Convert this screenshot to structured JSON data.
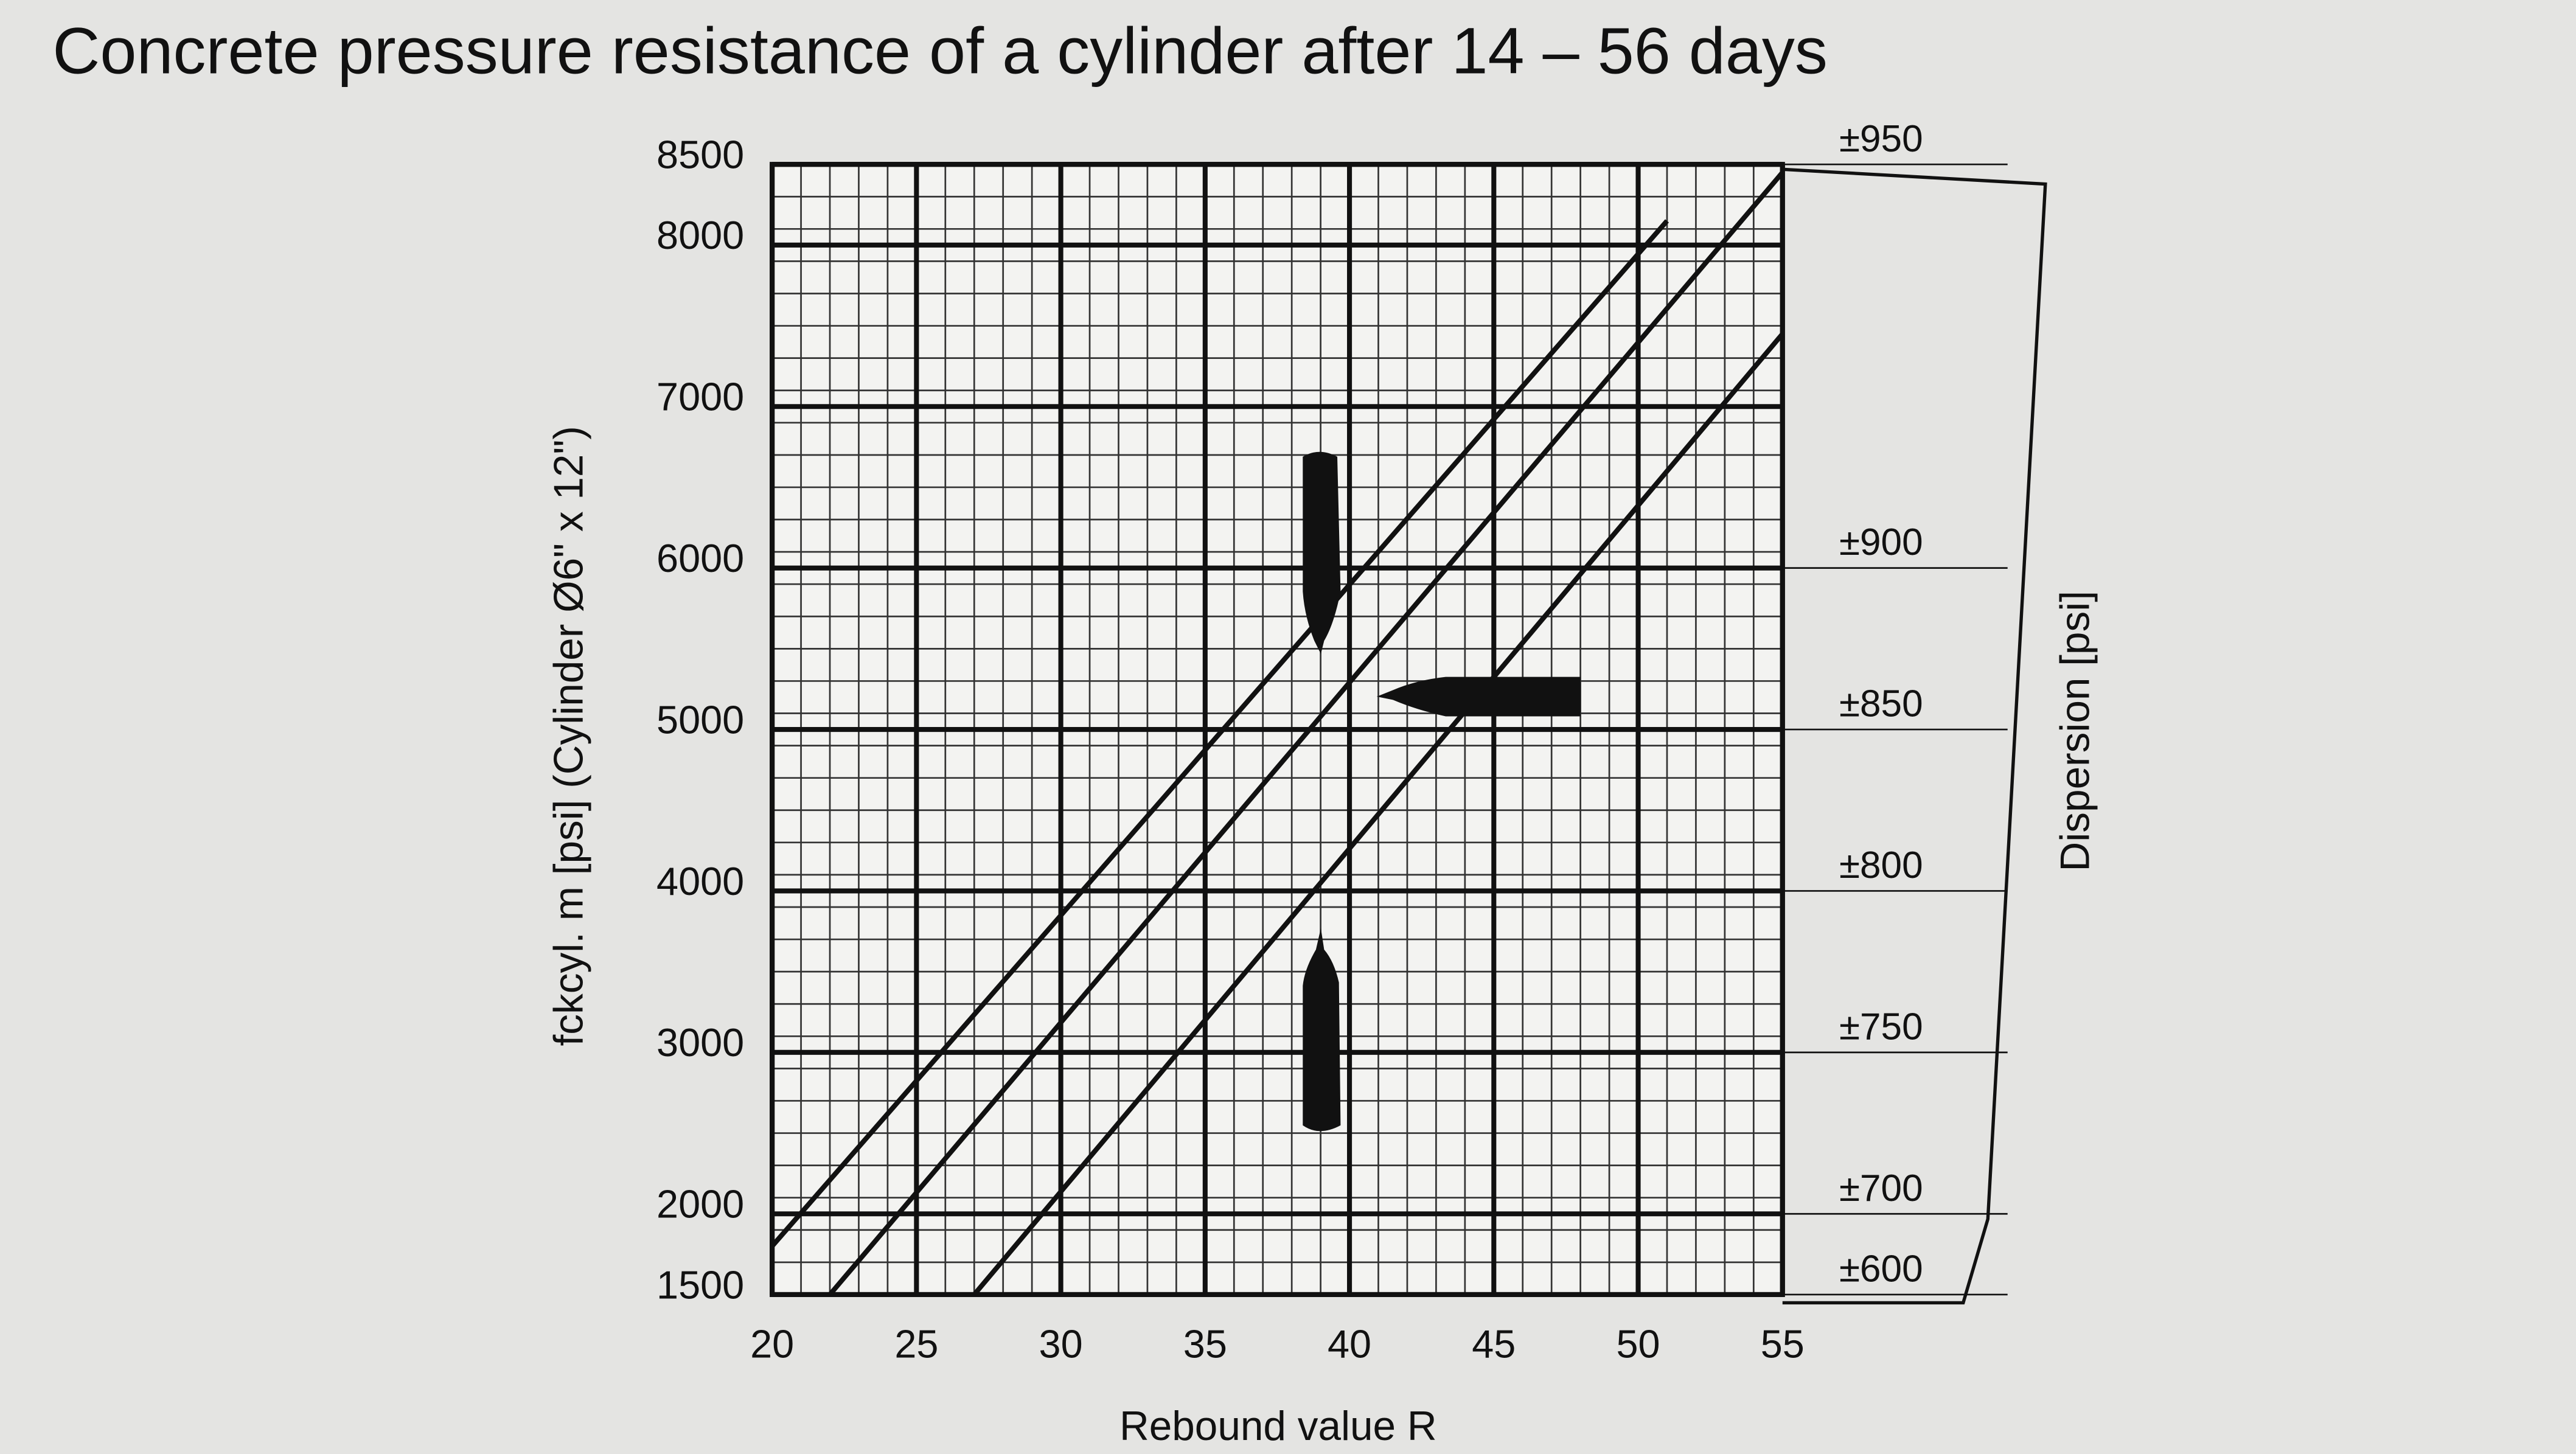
{
  "chart_data": {
    "type": "line",
    "title": "Concrete pressure resistance of a cylinder after 14 – 56 days",
    "xlabel": "Rebound value R",
    "ylabel": "fckcyl. m [psi] (Cylinder Ø6\" x 12\")",
    "y2label": "Dispersion [psi]",
    "xlim": [
      20,
      55
    ],
    "xticks": [
      20,
      25,
      30,
      35,
      40,
      45,
      50,
      55
    ],
    "ylim": [
      1500,
      8500
    ],
    "yticks": [
      1500,
      2000,
      3000,
      4000,
      5000,
      6000,
      7000,
      8000,
      8500
    ],
    "y2lim": [
      1500,
      8500
    ],
    "y2ticks": [
      {
        "value": 8500,
        "label": "±950"
      },
      {
        "value": 6000,
        "label": "±900"
      },
      {
        "value": 5000,
        "label": "±850"
      },
      {
        "value": 4000,
        "label": "±800"
      },
      {
        "value": 3000,
        "label": "±750"
      },
      {
        "value": 2000,
        "label": "±700"
      },
      {
        "value": 1500,
        "label": "±600"
      }
    ],
    "grid": true,
    "minor_xstep": 1,
    "minor_ystep": 200,
    "series": [
      {
        "color": "#111111",
        "x": [
          20,
          51
        ],
        "values": [
          1800,
          8150
        ]
      },
      {
        "color": "#111111",
        "x": [
          22,
          55
        ],
        "values": [
          1500,
          8450
        ]
      },
      {
        "color": "#111111",
        "x": [
          27,
          55
        ],
        "values": [
          1500,
          7450
        ]
      }
    ]
  }
}
